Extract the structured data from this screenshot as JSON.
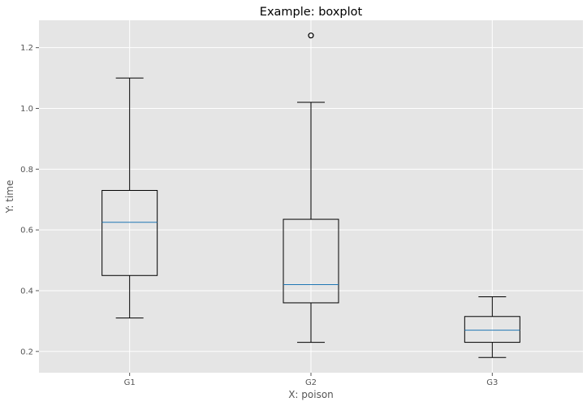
{
  "chart_data": {
    "type": "boxplot",
    "title": "Example: boxplot",
    "xlabel": "X: poison",
    "ylabel": "Y: time",
    "ylim": [
      0.13,
      1.29
    ],
    "yticks": [
      0.2,
      0.4,
      0.6,
      0.8,
      1.0,
      1.2
    ],
    "ytick_labels": [
      "0.2",
      "0.4",
      "0.6",
      "0.8",
      "1.0",
      "1.2"
    ],
    "grid": true,
    "colors": {
      "background": "#e5e5e5",
      "grid": "#ffffff",
      "box": "#000000",
      "median": "#1f77b4"
    },
    "categories": [
      "G1",
      "G2",
      "G3"
    ],
    "boxes": [
      {
        "label": "G1",
        "whisker_low": 0.31,
        "q1": 0.45,
        "median": 0.625,
        "q3": 0.73,
        "whisker_high": 1.1,
        "outliers": []
      },
      {
        "label": "G2",
        "whisker_low": 0.23,
        "q1": 0.36,
        "median": 0.42,
        "q3": 0.635,
        "whisker_high": 1.02,
        "outliers": [
          1.24
        ]
      },
      {
        "label": "G3",
        "whisker_low": 0.18,
        "q1": 0.23,
        "median": 0.27,
        "q3": 0.315,
        "whisker_high": 0.38,
        "outliers": []
      }
    ]
  }
}
